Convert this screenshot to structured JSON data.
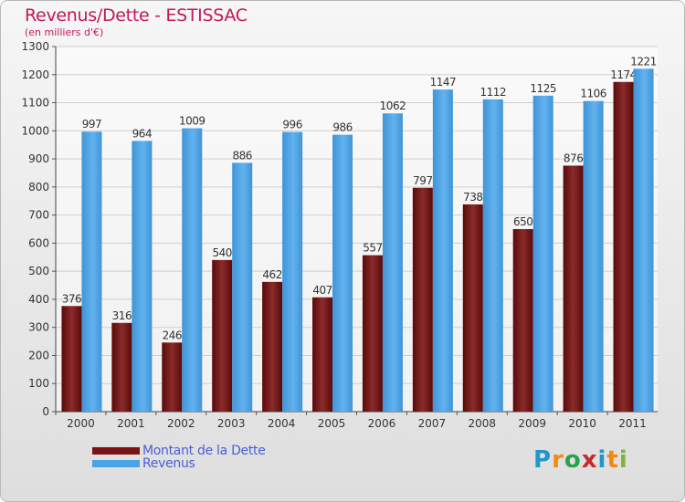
{
  "chart_data": {
    "type": "bar",
    "title": "Revenus/Dette - ESTISSAC",
    "subtitle": "(en milliers d'€)",
    "categories": [
      "2000",
      "2001",
      "2002",
      "2003",
      "2004",
      "2005",
      "2006",
      "2007",
      "2008",
      "2009",
      "2010",
      "2011"
    ],
    "series": [
      {
        "name": "Montant de la Dette",
        "color": "#7a1414",
        "values": [
          376,
          316,
          246,
          540,
          462,
          407,
          557,
          797,
          738,
          650,
          876,
          1174
        ]
      },
      {
        "name": "Revenus",
        "color": "#4aa3e6",
        "values": [
          997,
          964,
          1009,
          886,
          996,
          986,
          1062,
          1147,
          1112,
          1125,
          1106,
          1221
        ]
      }
    ],
    "ylim": [
      0,
      1300
    ],
    "yticks": [
      0,
      100,
      200,
      300,
      400,
      500,
      600,
      700,
      800,
      900,
      1000,
      1100,
      1200,
      1300
    ],
    "grid": true,
    "legend_position": "bottom-left"
  },
  "logo": {
    "letters": [
      "P",
      "r",
      "o",
      "x",
      "i",
      "t",
      "i"
    ]
  }
}
